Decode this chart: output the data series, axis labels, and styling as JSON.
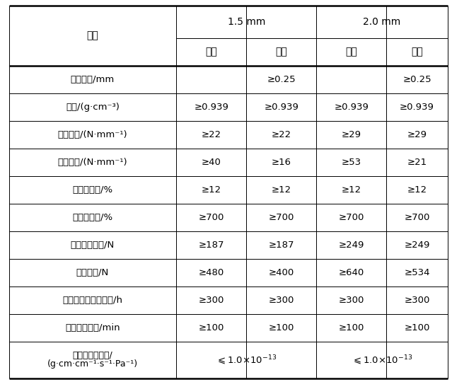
{
  "header1_15": "1.5 mm",
  "header1_20": "2.0 mm",
  "header2": [
    "光面",
    "糘面",
    "光面",
    "糘面"
  ],
  "prop_label": "性能",
  "rows": [
    {
      "label": "毛糙高度/mm",
      "label2": null,
      "v1": "",
      "v2": "≥0.25",
      "v3": "",
      "v4": "≥0.25",
      "span15": false,
      "span20": false
    },
    {
      "label": "密度/(g·cm⁻³)",
      "label2": null,
      "v1": "≥0.939",
      "v2": "≥0.939",
      "v3": "≥0.939",
      "v4": "≥0.939",
      "span15": false,
      "span20": false
    },
    {
      "label": "屈服强度/(N·mm⁻¹)",
      "label2": null,
      "v1": "≥22",
      "v2": "≥22",
      "v3": "≥29",
      "v4": "≥29",
      "span15": false,
      "span20": false
    },
    {
      "label": "断裂强度/(N·mm⁻¹)",
      "label2": null,
      "v1": "≥40",
      "v2": "≥16",
      "v3": "≥53",
      "v4": "≥21",
      "span15": false,
      "span20": false
    },
    {
      "label": "屈服伸长率/%",
      "label2": null,
      "v1": "≥12",
      "v2": "≥12",
      "v3": "≥12",
      "v4": "≥12",
      "span15": false,
      "span20": false
    },
    {
      "label": "断裂伸长率/%",
      "label2": null,
      "v1": "≥700",
      "v2": "≥700",
      "v3": "≥700",
      "v4": "≥700",
      "span15": false,
      "span20": false
    },
    {
      "label": "直角撞裂强度/N",
      "label2": null,
      "v1": "≥187",
      "v2": "≥187",
      "v3": "≥249",
      "v4": "≥249",
      "span15": false,
      "span20": false
    },
    {
      "label": "穿刺强度/N",
      "label2": null,
      "v1": "≥480",
      "v2": "≥400",
      "v3": "≥640",
      "v4": "≥534",
      "span15": false,
      "span20": false
    },
    {
      "label": "耐环境应力开裂时间/h",
      "label2": null,
      "v1": "≥300",
      "v2": "≥300",
      "v3": "≥300",
      "v4": "≥300",
      "span15": false,
      "span20": false
    },
    {
      "label": "氧化诱导时间/min",
      "label2": null,
      "v1": "≥100",
      "v2": "≥100",
      "v3": "≥100",
      "v4": "≥100",
      "span15": false,
      "span20": false
    },
    {
      "label": "水蔬气渗透系数/",
      "label2": "(g·cm·cm⁻¹·s⁻¹·Pa⁻¹)",
      "v1": null,
      "v2": null,
      "v3": null,
      "v4": null,
      "span15": true,
      "span15_val": "≤1.0×10⁻¹³",
      "span20": true,
      "span20_val": "≤1.0×10⁻¹³"
    }
  ],
  "bg_color": "#ffffff",
  "text_color": "#000000",
  "figsize": [
    6.39,
    5.4
  ],
  "dpi": 100
}
